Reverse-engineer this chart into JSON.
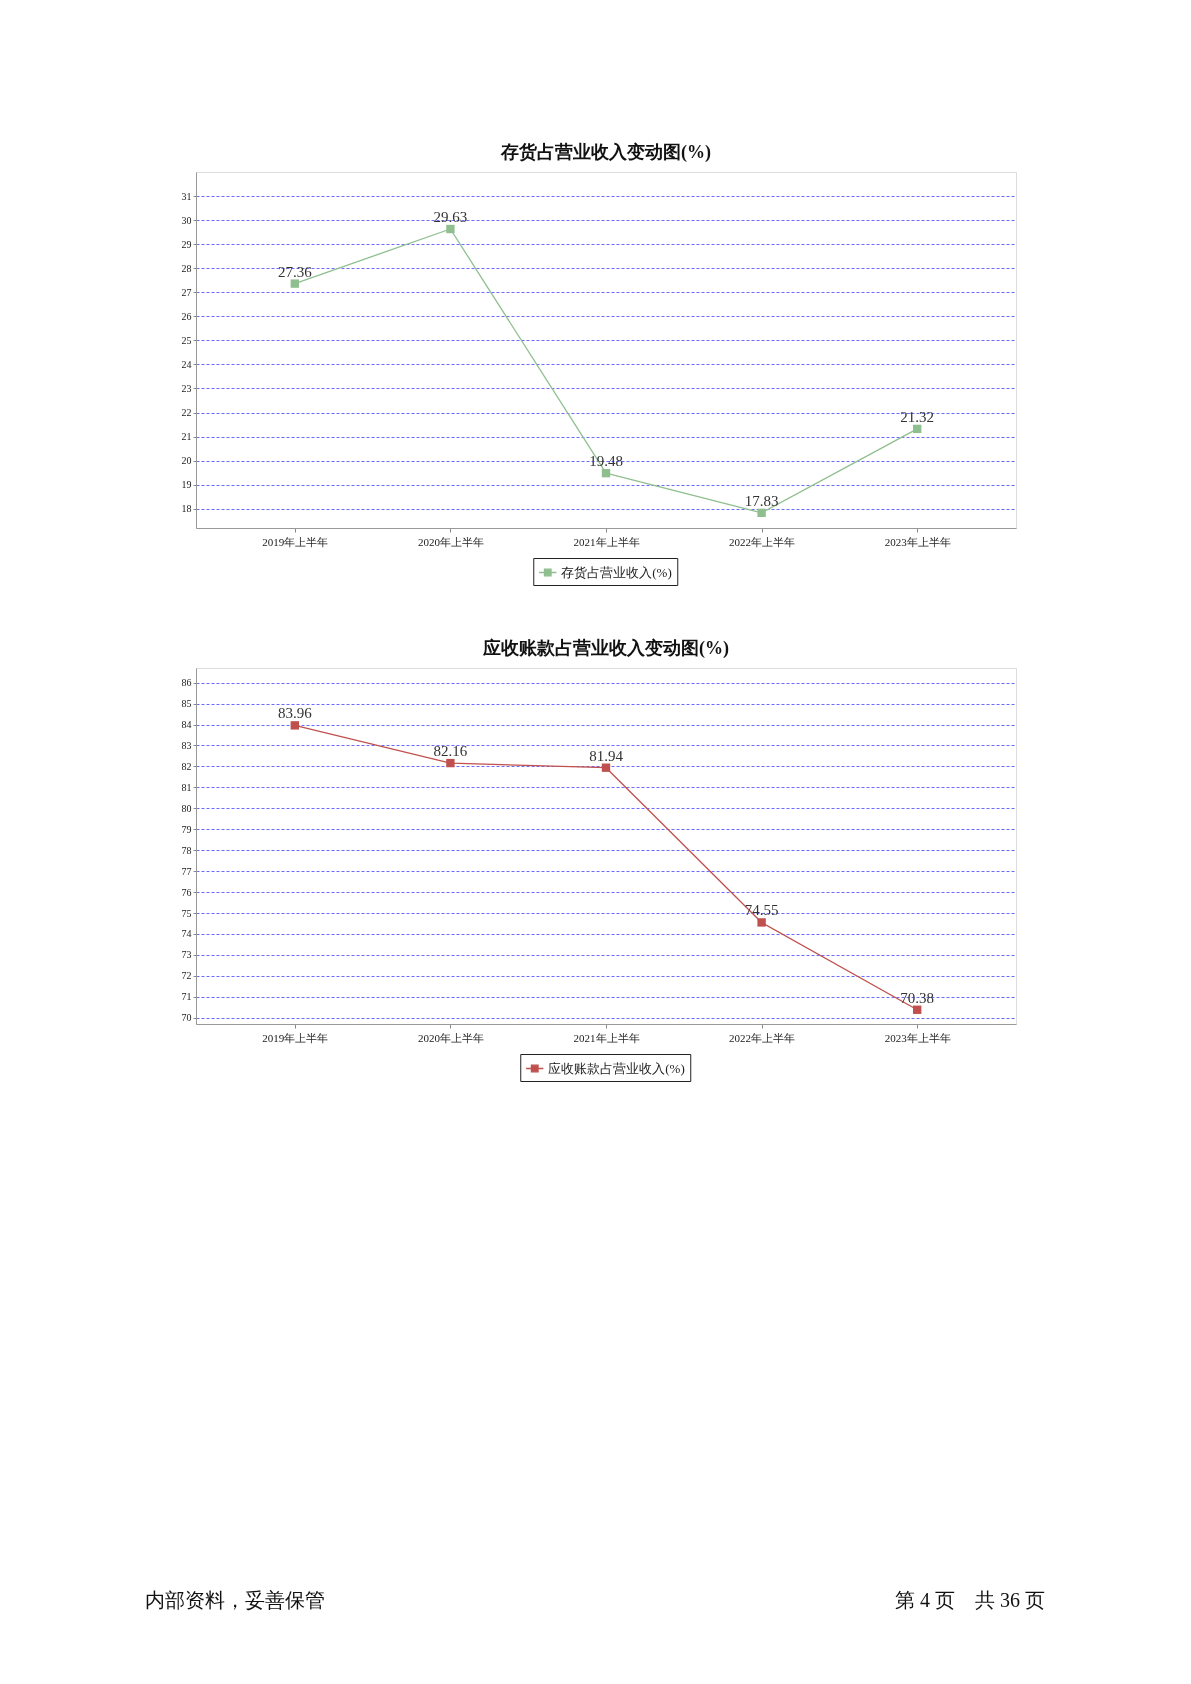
{
  "chart_data": [
    {
      "type": "line",
      "title": "存货占营业收入变动图(%)",
      "categories": [
        "2019年上半年",
        "2020年上半年",
        "2021年上半年",
        "2022年上半年",
        "2023年上半年"
      ],
      "series": [
        {
          "name": "存货占营业收入(%)",
          "color": "#8fbf8f",
          "values": [
            27.36,
            29.63,
            19.48,
            17.83,
            21.32
          ]
        }
      ],
      "ylim": [
        17.2,
        32
      ],
      "yticks": [
        18,
        19,
        20,
        21,
        22,
        23,
        24,
        25,
        26,
        27,
        28,
        29,
        30,
        31
      ],
      "grid": "y",
      "legend": "bottom",
      "marker": "square",
      "data_labels": true
    },
    {
      "type": "line",
      "title": "应收账款占营业收入变动图(%)",
      "categories": [
        "2019年上半年",
        "2020年上半年",
        "2021年上半年",
        "2022年上半年",
        "2023年上半年"
      ],
      "series": [
        {
          "name": "应收账款占营业收入(%)",
          "color": "#c0504d",
          "values": [
            83.96,
            82.16,
            81.94,
            74.55,
            70.38
          ]
        }
      ],
      "ylim": [
        69.7,
        86.7
      ],
      "yticks": [
        70,
        71,
        72,
        73,
        74,
        75,
        76,
        77,
        78,
        79,
        80,
        81,
        82,
        83,
        84,
        85,
        86
      ],
      "grid": "y",
      "legend": "bottom",
      "marker": "square",
      "data_labels": true
    },
    {
      "type": "other",
      "annotations": [
        "内部资料，妥善保管",
        "第 4 页　共 36 页"
      ]
    }
  ]
}
